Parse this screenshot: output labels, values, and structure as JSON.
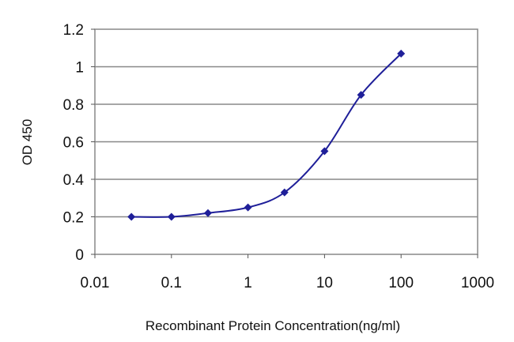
{
  "chart_data": {
    "type": "line",
    "title": "",
    "xlabel": "Recombinant Protein Concentration(ng/ml)",
    "ylabel": "OD 450",
    "xscale": "log",
    "xlim": [
      0.01,
      1000
    ],
    "ylim": [
      0,
      1.2
    ],
    "xticks": [
      "0.01",
      "0.1",
      "1",
      "10",
      "100",
      "1000"
    ],
    "yticks": [
      "0",
      "0.2",
      "0.4",
      "0.6",
      "0.8",
      "1",
      "1.2"
    ],
    "grid": "horizontal",
    "series": [
      {
        "color": "#1f1f99",
        "marker": "diamond",
        "points": [
          {
            "x": 0.03,
            "y": 0.2
          },
          {
            "x": 0.1,
            "y": 0.2
          },
          {
            "x": 0.3,
            "y": 0.22
          },
          {
            "x": 1,
            "y": 0.25
          },
          {
            "x": 3,
            "y": 0.33
          },
          {
            "x": 10,
            "y": 0.55
          },
          {
            "x": 30,
            "y": 0.85
          },
          {
            "x": 100,
            "y": 1.07
          }
        ]
      }
    ]
  }
}
